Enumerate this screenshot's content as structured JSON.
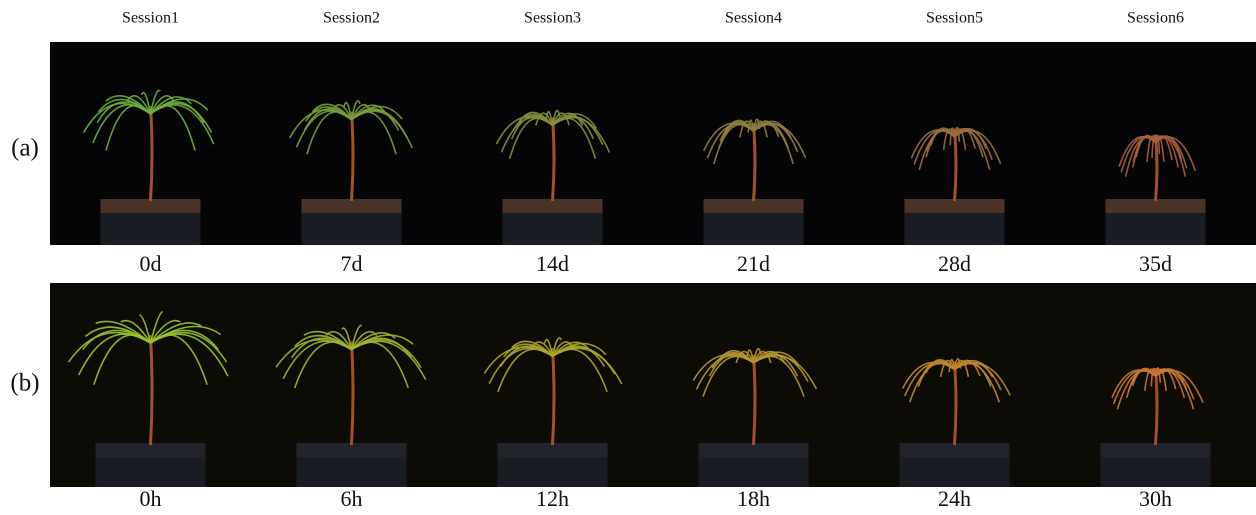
{
  "columns": [
    "Session1",
    "Session2",
    "Session3",
    "Session4",
    "Session5",
    "Session6"
  ],
  "rows": [
    {
      "label": "(a)",
      "times": [
        "0d",
        "7d",
        "14d",
        "21d",
        "28d",
        "35d"
      ]
    },
    {
      "label": "(b)",
      "times": [
        "0h",
        "6h",
        "12h",
        "18h",
        "24h",
        "30h"
      ]
    }
  ]
}
